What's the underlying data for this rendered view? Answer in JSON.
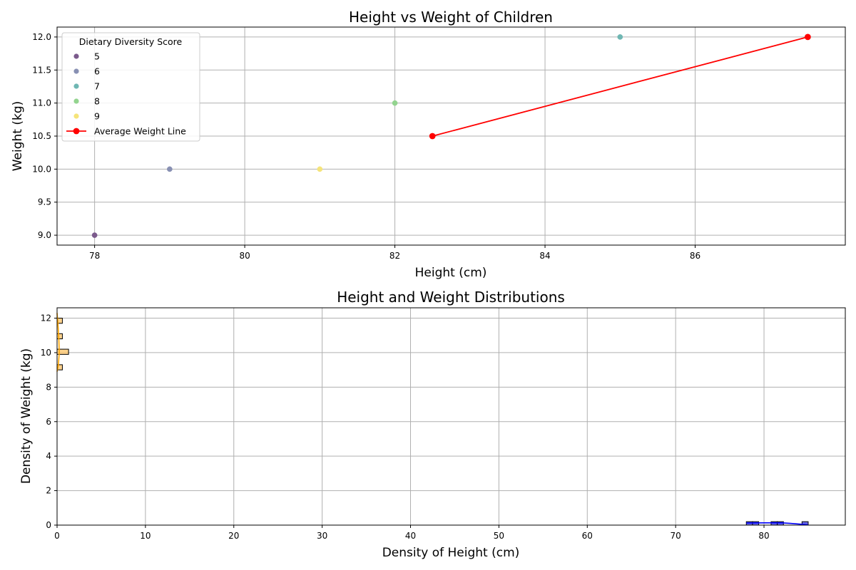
{
  "chart_data": [
    {
      "type": "scatter",
      "title": "Height vs Weight of Children",
      "xlabel": "Height (cm)",
      "ylabel": "Weight (kg)",
      "xlim": [
        77.5,
        88.0
      ],
      "ylim": [
        8.85,
        12.15
      ],
      "xticks": [
        78,
        80,
        82,
        84,
        86
      ],
      "yticks": [
        9.0,
        9.5,
        10.0,
        10.5,
        11.0,
        11.5,
        12.0
      ],
      "grid": true,
      "legend": {
        "title": "Dietary Diversity Score",
        "placement": "top-left",
        "entries": [
          {
            "label": "5",
            "color": "#7b5a8c"
          },
          {
            "label": "6",
            "color": "#8890b3"
          },
          {
            "label": "7",
            "color": "#6fb7b3"
          },
          {
            "label": "8",
            "color": "#93d48f"
          },
          {
            "label": "9",
            "color": "#f5e47a"
          },
          {
            "label": "Average Weight Line",
            "color": "#ff0000"
          }
        ]
      },
      "points": [
        {
          "x": 78,
          "y": 9.0,
          "score": "5"
        },
        {
          "x": 79,
          "y": 10.0,
          "score": "6"
        },
        {
          "x": 81,
          "y": 10.0,
          "score": "9"
        },
        {
          "x": 82,
          "y": 11.0,
          "score": "8"
        },
        {
          "x": 85,
          "y": 12.0,
          "score": "7"
        }
      ],
      "series": [
        {
          "name": "Average Weight Line",
          "color": "#ff0000",
          "x": [
            82.5,
            87.5
          ],
          "y": [
            10.5,
            12.0
          ]
        }
      ]
    },
    {
      "type": "bar",
      "title": "Height and Weight Distributions",
      "xlabel": "Density of Height (cm)",
      "ylabel": "Density of Weight (kg)",
      "xlim": [
        0,
        89.2
      ],
      "ylim": [
        0,
        12.6
      ],
      "xticks": [
        0,
        10,
        20,
        30,
        40,
        50,
        60,
        70,
        80
      ],
      "yticks": [
        0,
        2,
        4,
        6,
        8,
        10,
        12
      ],
      "grid": true,
      "height_histogram": {
        "color": "#4a4ae0",
        "line_color": "#0000ff",
        "bins": [
          {
            "x0": 78.0,
            "x1": 78.7,
            "density": 0.2
          },
          {
            "x0": 78.7,
            "x1": 79.4,
            "density": 0.2
          },
          {
            "x0": 80.8,
            "x1": 81.5,
            "density": 0.2
          },
          {
            "x0": 81.5,
            "x1": 82.2,
            "density": 0.2
          },
          {
            "x0": 84.3,
            "x1": 85.0,
            "density": 0.2
          }
        ],
        "kde": [
          [
            78.0,
            0.12
          ],
          [
            80.0,
            0.13
          ],
          [
            82.0,
            0.13
          ],
          [
            83.0,
            0.1
          ],
          [
            85.0,
            0.02
          ]
        ]
      },
      "weight_histogram": {
        "color": "#ffc870",
        "line_color": "#ffa500",
        "bins": [
          {
            "y0": 9.0,
            "y1": 9.3,
            "density": 0.6
          },
          {
            "y0": 9.9,
            "y1": 10.2,
            "density": 1.3
          },
          {
            "y0": 10.8,
            "y1": 11.1,
            "density": 0.6
          },
          {
            "y0": 11.7,
            "y1": 12.0,
            "density": 0.6
          }
        ],
        "kde": [
          [
            0.0,
            8.9
          ],
          [
            0.15,
            9.3
          ],
          [
            0.25,
            10.0
          ],
          [
            0.2,
            10.8
          ],
          [
            0.1,
            11.7
          ],
          [
            0.0,
            12.3
          ]
        ]
      }
    }
  ]
}
